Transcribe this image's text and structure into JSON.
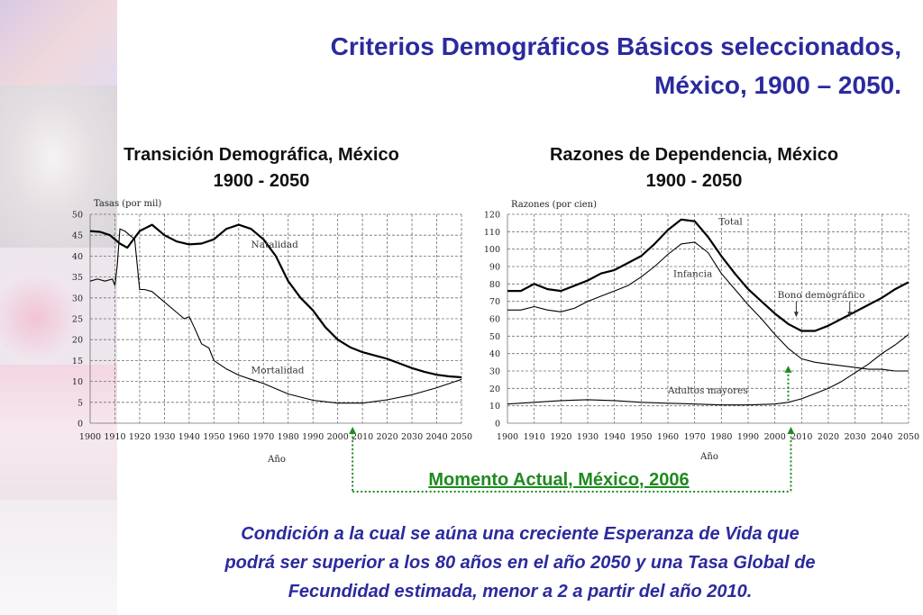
{
  "slide": {
    "title_line1": "Criterios Demográficos Básicos seleccionados,",
    "title_line2": "México, 1900 – 2050.",
    "current_moment": "Momento Actual, México, 2006",
    "note_line1": "Condición a la cual se aúna una creciente Esperanza de Vida que",
    "note_line2": "podrá ser superior a los 80 años en el año 2050 y una Tasa Global de",
    "note_line3": "Fecundidad estimada, menor a 2 a partir del año 2010."
  },
  "colors": {
    "title": "#2b2a9e",
    "accent_green": "#1f8a1f",
    "grid": "#777777",
    "line": "#000000"
  },
  "chart_data": [
    {
      "type": "line",
      "title_line1": "Transición Demográfica, México",
      "title_line2": "1900 - 2050",
      "ylabel": "Tasas (por mil)",
      "xlabel": "Año",
      "xlim": [
        1900,
        2050
      ],
      "ylim": [
        0,
        50
      ],
      "xticks": [
        1900,
        1910,
        1920,
        1930,
        1940,
        1950,
        1960,
        1970,
        1980,
        1990,
        2000,
        2010,
        2020,
        2030,
        2040,
        2050
      ],
      "yticks": [
        0,
        5,
        10,
        15,
        20,
        25,
        30,
        35,
        40,
        45,
        50
      ],
      "grid": true,
      "series": [
        {
          "name": "Natalidad",
          "width": 2.2,
          "x": [
            1900,
            1904,
            1908,
            1912,
            1915,
            1920,
            1925,
            1930,
            1935,
            1940,
            1945,
            1950,
            1955,
            1960,
            1965,
            1970,
            1975,
            1980,
            1985,
            1990,
            1995,
            2000,
            2005,
            2010,
            2015,
            2020,
            2025,
            2030,
            2035,
            2040,
            2045,
            2050
          ],
          "y": [
            46,
            45.8,
            45,
            43,
            42,
            46,
            47.5,
            45,
            43.5,
            42.8,
            43,
            44,
            46.5,
            47.5,
            46.5,
            44,
            40,
            34,
            30,
            27,
            23,
            20,
            18.2,
            17,
            16.2,
            15.4,
            14.3,
            13.2,
            12.3,
            11.6,
            11.2,
            11
          ]
        },
        {
          "name": "Mortalidad",
          "width": 1.1,
          "x": [
            1900,
            1903,
            1906,
            1909,
            1910,
            1911,
            1912,
            1914,
            1916,
            1918,
            1919,
            1920,
            1922,
            1925,
            1930,
            1935,
            1938,
            1940,
            1942,
            1945,
            1948,
            1950,
            1955,
            1960,
            1965,
            1970,
            1980,
            1990,
            2000,
            2010,
            2020,
            2030,
            2040,
            2050
          ],
          "y": [
            34,
            34.5,
            34,
            34.5,
            33,
            38,
            46.5,
            46,
            45,
            44,
            38,
            32,
            32,
            31.5,
            29,
            26.5,
            25,
            25.5,
            23,
            19,
            18,
            15,
            13,
            11.5,
            10.5,
            9.5,
            7,
            5.5,
            4.8,
            4.8,
            5.6,
            6.8,
            8.5,
            10.5
          ]
        }
      ],
      "series_labels": [
        {
          "text": "Natalidad",
          "x": 1965,
          "y": 42
        },
        {
          "text": "Mortalidad",
          "x": 1965,
          "y": 12
        }
      ]
    },
    {
      "type": "line",
      "title_line1": "Razones de Dependencia, México",
      "title_line2": "1900 - 2050",
      "ylabel": "Razones (por cien)",
      "xlabel": "Año",
      "xlim": [
        1900,
        2050
      ],
      "ylim": [
        0,
        120
      ],
      "xticks": [
        1900,
        1910,
        1920,
        1930,
        1940,
        1950,
        1960,
        1970,
        1980,
        1990,
        2000,
        2010,
        2020,
        2030,
        2040,
        2050
      ],
      "yticks": [
        0,
        10,
        20,
        30,
        40,
        50,
        60,
        70,
        80,
        90,
        100,
        110,
        120
      ],
      "grid": true,
      "series": [
        {
          "name": "Total",
          "width": 2.2,
          "x": [
            1900,
            1905,
            1910,
            1915,
            1920,
            1925,
            1930,
            1935,
            1940,
            1945,
            1950,
            1955,
            1960,
            1965,
            1970,
            1975,
            1980,
            1985,
            1990,
            1995,
            2000,
            2005,
            2010,
            2015,
            2020,
            2025,
            2030,
            2035,
            2040,
            2045,
            2050
          ],
          "y": [
            76,
            76,
            80,
            77,
            76,
            79,
            82,
            86,
            88,
            92,
            96,
            103,
            111,
            117,
            116,
            107,
            96,
            86,
            77,
            70,
            63,
            57,
            53,
            53,
            56,
            60,
            64,
            68,
            72,
            77,
            81
          ]
        },
        {
          "name": "Infancia",
          "width": 1.1,
          "x": [
            1900,
            1905,
            1910,
            1915,
            1920,
            1925,
            1930,
            1935,
            1940,
            1945,
            1950,
            1955,
            1960,
            1965,
            1970,
            1975,
            1980,
            1985,
            1990,
            1995,
            2000,
            2005,
            2010,
            2015,
            2020,
            2025,
            2030,
            2035,
            2040,
            2045,
            2050
          ],
          "y": [
            65,
            65,
            67,
            65,
            64,
            66,
            70,
            73,
            76,
            79,
            84,
            90,
            97,
            103,
            104,
            98,
            86,
            77,
            68,
            60,
            51,
            43,
            37,
            35,
            34,
            33,
            32,
            31,
            31,
            30,
            30
          ]
        },
        {
          "name": "Adultos mayores",
          "width": 1.1,
          "x": [
            1900,
            1910,
            1920,
            1930,
            1940,
            1950,
            1960,
            1970,
            1980,
            1990,
            2000,
            2005,
            2010,
            2015,
            2020,
            2025,
            2030,
            2035,
            2040,
            2045,
            2050
          ],
          "y": [
            11,
            12,
            13,
            13.5,
            13,
            12,
            11.5,
            11,
            10.5,
            10.5,
            11,
            12,
            14,
            17,
            20,
            24,
            29,
            34,
            40,
            45,
            51
          ]
        }
      ],
      "series_labels": [
        {
          "text": "Total",
          "x": 1979,
          "y": 114
        },
        {
          "text": "Infancia",
          "x": 1962,
          "y": 84
        },
        {
          "text": "Bono demográfico",
          "x": 2001,
          "y": 72
        },
        {
          "text": "Adultos mayores",
          "x": 1960,
          "y": 17
        }
      ]
    }
  ]
}
